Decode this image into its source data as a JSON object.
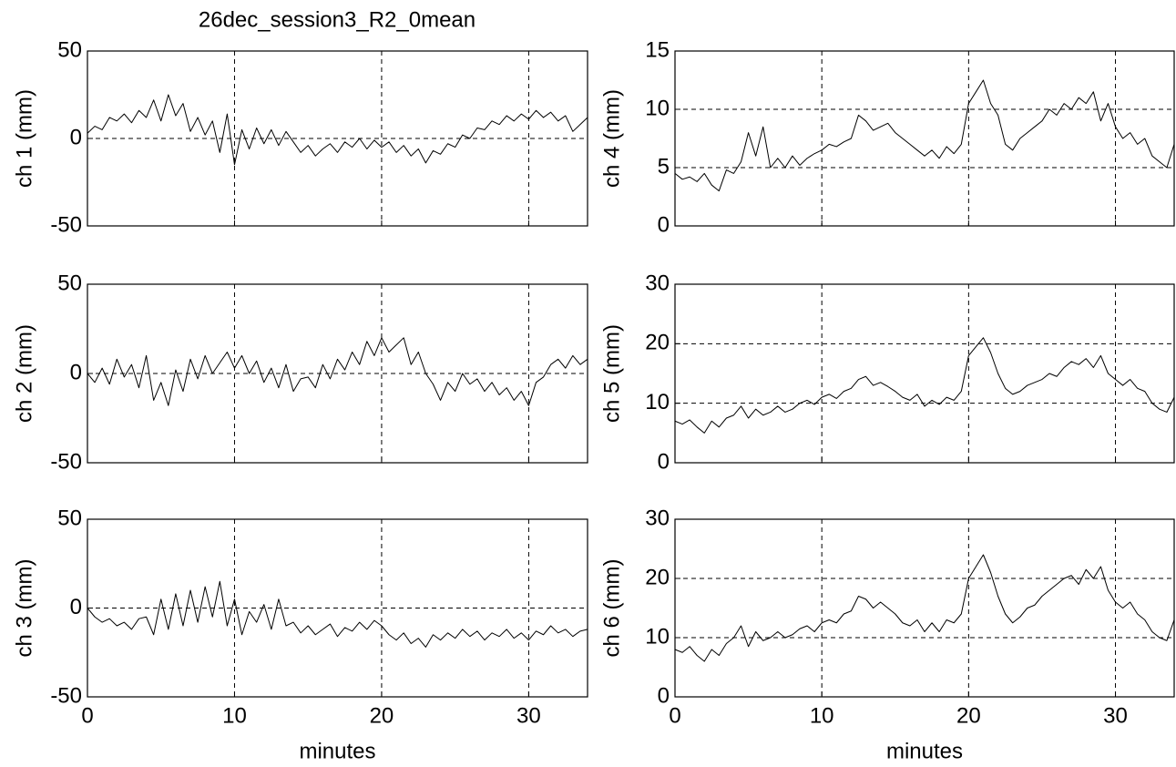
{
  "chart_data": [
    {
      "type": "line",
      "title": "26dec_session3_R2_0mean",
      "ylabel": "ch 1 (mm)",
      "grid": true,
      "xlim": [
        0,
        34
      ],
      "xticks": [
        0,
        10,
        20,
        30
      ],
      "ylim": [
        -50,
        50
      ],
      "yticks": [
        -50,
        0,
        50
      ],
      "x": [
        0,
        0.5,
        1,
        1.5,
        2,
        2.5,
        3,
        3.5,
        4,
        4.5,
        5,
        5.5,
        6,
        6.5,
        7,
        7.5,
        8,
        8.5,
        9,
        9.5,
        10,
        10.5,
        11,
        11.5,
        12,
        12.5,
        13,
        13.5,
        14,
        14.5,
        15,
        15.5,
        16,
        16.5,
        17,
        17.5,
        18,
        18.5,
        19,
        19.5,
        20,
        20.5,
        21,
        21.5,
        22,
        22.5,
        23,
        23.5,
        24,
        24.5,
        25,
        25.5,
        26,
        26.5,
        27,
        27.5,
        28,
        28.5,
        29,
        29.5,
        30,
        30.5,
        31,
        31.5,
        32,
        32.5,
        33,
        33.5,
        34
      ],
      "series": [
        {
          "color": "#000000",
          "values": [
            3,
            7,
            5,
            12,
            10,
            14,
            9,
            16,
            12,
            22,
            10,
            25,
            13,
            20,
            4,
            12,
            2,
            10,
            -8,
            14,
            -15,
            5,
            -6,
            6,
            -3,
            5,
            -4,
            4,
            -2,
            -8,
            -4,
            -10,
            -6,
            -3,
            -8,
            -2,
            -5,
            0,
            -6,
            -1,
            -5,
            -2,
            -8,
            -4,
            -10,
            -6,
            -14,
            -7,
            -9,
            -3,
            -5,
            2,
            0,
            6,
            5,
            10,
            8,
            13,
            10,
            14,
            11,
            16,
            12,
            15,
            10,
            13,
            4,
            8,
            12
          ]
        }
      ]
    },
    {
      "type": "line",
      "ylabel": "ch 2 (mm)",
      "grid": true,
      "xlim": [
        0,
        34
      ],
      "xticks": [
        0,
        10,
        20,
        30
      ],
      "ylim": [
        -50,
        50
      ],
      "yticks": [
        -50,
        0,
        50
      ],
      "x": [
        0,
        0.5,
        1,
        1.5,
        2,
        2.5,
        3,
        3.5,
        4,
        4.5,
        5,
        5.5,
        6,
        6.5,
        7,
        7.5,
        8,
        8.5,
        9,
        9.5,
        10,
        10.5,
        11,
        11.5,
        12,
        12.5,
        13,
        13.5,
        14,
        14.5,
        15,
        15.5,
        16,
        16.5,
        17,
        17.5,
        18,
        18.5,
        19,
        19.5,
        20,
        20.5,
        21,
        21.5,
        22,
        22.5,
        23,
        23.5,
        24,
        24.5,
        25,
        25.5,
        26,
        26.5,
        27,
        27.5,
        28,
        28.5,
        29,
        29.5,
        30,
        30.5,
        31,
        31.5,
        32,
        32.5,
        33,
        33.5,
        34
      ],
      "series": [
        {
          "color": "#000000",
          "values": [
            0,
            -5,
            3,
            -6,
            8,
            -2,
            5,
            -8,
            10,
            -15,
            -5,
            -18,
            2,
            -10,
            8,
            -3,
            10,
            0,
            6,
            12,
            3,
            10,
            0,
            7,
            -5,
            3,
            -8,
            5,
            -10,
            -3,
            -2,
            -8,
            5,
            -3,
            8,
            2,
            12,
            5,
            18,
            10,
            20,
            12,
            16,
            20,
            5,
            12,
            0,
            -6,
            -15,
            -5,
            -10,
            0,
            -6,
            -3,
            -10,
            -5,
            -12,
            -8,
            -15,
            -10,
            -18,
            -5,
            -2,
            5,
            8,
            3,
            10,
            5,
            8
          ]
        }
      ]
    },
    {
      "type": "line",
      "ylabel": "ch 3 (mm)",
      "xlabel": "minutes",
      "grid": true,
      "xlim": [
        0,
        34
      ],
      "xticks": [
        0,
        10,
        20,
        30
      ],
      "ylim": [
        -50,
        50
      ],
      "yticks": [
        -50,
        0,
        50
      ],
      "x": [
        0,
        0.5,
        1,
        1.5,
        2,
        2.5,
        3,
        3.5,
        4,
        4.5,
        5,
        5.5,
        6,
        6.5,
        7,
        7.5,
        8,
        8.5,
        9,
        9.5,
        10,
        10.5,
        11,
        11.5,
        12,
        12.5,
        13,
        13.5,
        14,
        14.5,
        15,
        15.5,
        16,
        16.5,
        17,
        17.5,
        18,
        18.5,
        19,
        19.5,
        20,
        20.5,
        21,
        21.5,
        22,
        22.5,
        23,
        23.5,
        24,
        24.5,
        25,
        25.5,
        26,
        26.5,
        27,
        27.5,
        28,
        28.5,
        29,
        29.5,
        30,
        30.5,
        31,
        31.5,
        32,
        32.5,
        33,
        33.5,
        34
      ],
      "series": [
        {
          "color": "#000000",
          "values": [
            0,
            -5,
            -8,
            -6,
            -10,
            -8,
            -12,
            -6,
            -5,
            -15,
            5,
            -12,
            8,
            -10,
            10,
            -8,
            12,
            -5,
            15,
            -10,
            5,
            -15,
            -2,
            -8,
            2,
            -12,
            5,
            -10,
            -8,
            -14,
            -10,
            -15,
            -12,
            -9,
            -16,
            -11,
            -13,
            -8,
            -12,
            -7,
            -10,
            -15,
            -18,
            -14,
            -20,
            -17,
            -22,
            -15,
            -18,
            -14,
            -17,
            -12,
            -16,
            -13,
            -18,
            -14,
            -16,
            -12,
            -17,
            -14,
            -18,
            -13,
            -15,
            -10,
            -14,
            -12,
            -16,
            -13,
            -12
          ]
        }
      ]
    },
    {
      "type": "line",
      "ylabel": "ch 4 (mm)",
      "grid": true,
      "xlim": [
        0,
        34
      ],
      "xticks": [
        0,
        10,
        20,
        30
      ],
      "ylim": [
        0,
        15
      ],
      "yticks": [
        0,
        5,
        10,
        15
      ],
      "x": [
        0,
        0.5,
        1,
        1.5,
        2,
        2.5,
        3,
        3.5,
        4,
        4.5,
        5,
        5.5,
        6,
        6.5,
        7,
        7.5,
        8,
        8.5,
        9,
        9.5,
        10,
        10.5,
        11,
        11.5,
        12,
        12.5,
        13,
        13.5,
        14,
        14.5,
        15,
        15.5,
        16,
        16.5,
        17,
        17.5,
        18,
        18.5,
        19,
        19.5,
        20,
        20.5,
        21,
        21.5,
        22,
        22.5,
        23,
        23.5,
        24,
        24.5,
        25,
        25.5,
        26,
        26.5,
        27,
        27.5,
        28,
        28.5,
        29,
        29.5,
        30,
        30.5,
        31,
        31.5,
        32,
        32.5,
        33,
        33.5,
        34
      ],
      "series": [
        {
          "color": "#000000",
          "values": [
            4.5,
            4,
            4.2,
            3.8,
            4.5,
            3.5,
            3,
            4.8,
            4.5,
            5.5,
            8,
            6,
            8.5,
            5,
            5.8,
            5,
            6,
            5.2,
            5.8,
            6.2,
            6.5,
            7,
            6.8,
            7.2,
            7.5,
            9.5,
            9,
            8.2,
            8.5,
            8.8,
            8,
            7.5,
            7,
            6.5,
            6,
            6.5,
            5.8,
            6.8,
            6.2,
            7,
            10.5,
            11.5,
            12.5,
            10.5,
            9.5,
            7,
            6.5,
            7.5,
            8,
            8.5,
            9,
            10,
            9.5,
            10.5,
            10,
            11,
            10.5,
            11.5,
            9,
            10.5,
            8.5,
            7.5,
            8,
            7,
            7.5,
            6,
            5.5,
            5,
            7
          ]
        }
      ]
    },
    {
      "type": "line",
      "ylabel": "ch 5 (mm)",
      "grid": true,
      "xlim": [
        0,
        34
      ],
      "xticks": [
        0,
        10,
        20,
        30
      ],
      "ylim": [
        0,
        30
      ],
      "yticks": [
        0,
        10,
        20,
        30
      ],
      "x": [
        0,
        0.5,
        1,
        1.5,
        2,
        2.5,
        3,
        3.5,
        4,
        4.5,
        5,
        5.5,
        6,
        6.5,
        7,
        7.5,
        8,
        8.5,
        9,
        9.5,
        10,
        10.5,
        11,
        11.5,
        12,
        12.5,
        13,
        13.5,
        14,
        14.5,
        15,
        15.5,
        16,
        16.5,
        17,
        17.5,
        18,
        18.5,
        19,
        19.5,
        20,
        20.5,
        21,
        21.5,
        22,
        22.5,
        23,
        23.5,
        24,
        24.5,
        25,
        25.5,
        26,
        26.5,
        27,
        27.5,
        28,
        28.5,
        29,
        29.5,
        30,
        30.5,
        31,
        31.5,
        32,
        32.5,
        33,
        33.5,
        34
      ],
      "series": [
        {
          "color": "#000000",
          "values": [
            7,
            6.5,
            7.2,
            6,
            5,
            7,
            6,
            7.5,
            8,
            9.5,
            7.5,
            9,
            8,
            8.5,
            9.5,
            8.5,
            9,
            10,
            10.5,
            9.8,
            11,
            11.5,
            10.8,
            12,
            12.5,
            14,
            14.5,
            13,
            13.5,
            12.8,
            12,
            11,
            10.5,
            11.5,
            9.5,
            10.5,
            9.8,
            11,
            10.5,
            12,
            18,
            19.5,
            21,
            18.5,
            15,
            12.5,
            11.5,
            12,
            13,
            13.5,
            14,
            15,
            14.5,
            16,
            17,
            16.5,
            17.5,
            16,
            18,
            15,
            14,
            13,
            14,
            12.5,
            12,
            10,
            9,
            8.5,
            11
          ]
        }
      ]
    },
    {
      "type": "line",
      "ylabel": "ch 6 (mm)",
      "xlabel": "minutes",
      "grid": true,
      "xlim": [
        0,
        34
      ],
      "xticks": [
        0,
        10,
        20,
        30
      ],
      "ylim": [
        0,
        30
      ],
      "yticks": [
        0,
        10,
        20,
        30
      ],
      "x": [
        0,
        0.5,
        1,
        1.5,
        2,
        2.5,
        3,
        3.5,
        4,
        4.5,
        5,
        5.5,
        6,
        6.5,
        7,
        7.5,
        8,
        8.5,
        9,
        9.5,
        10,
        10.5,
        11,
        11.5,
        12,
        12.5,
        13,
        13.5,
        14,
        14.5,
        15,
        15.5,
        16,
        16.5,
        17,
        17.5,
        18,
        18.5,
        19,
        19.5,
        20,
        20.5,
        21,
        21.5,
        22,
        22.5,
        23,
        23.5,
        24,
        24.5,
        25,
        25.5,
        26,
        26.5,
        27,
        27.5,
        28,
        28.5,
        29,
        29.5,
        30,
        30.5,
        31,
        31.5,
        32,
        32.5,
        33,
        33.5,
        34
      ],
      "series": [
        {
          "color": "#000000",
          "values": [
            8,
            7.5,
            8.5,
            7,
            6,
            8,
            7,
            9,
            10,
            12,
            8.5,
            11,
            9.5,
            10,
            11,
            10,
            10.5,
            11.5,
            12,
            11,
            12.5,
            13,
            12.5,
            14,
            14.5,
            17,
            16.5,
            15,
            16,
            15,
            14,
            12.5,
            12,
            13,
            11,
            12.5,
            11,
            13,
            12.5,
            14,
            20,
            22,
            24,
            21,
            17,
            14,
            12.5,
            13.5,
            15,
            15.5,
            17,
            18,
            19,
            20,
            20.5,
            19,
            21.5,
            20,
            22,
            18,
            16,
            15,
            16,
            14,
            13,
            11,
            10,
            9.5,
            13
          ]
        }
      ]
    }
  ]
}
